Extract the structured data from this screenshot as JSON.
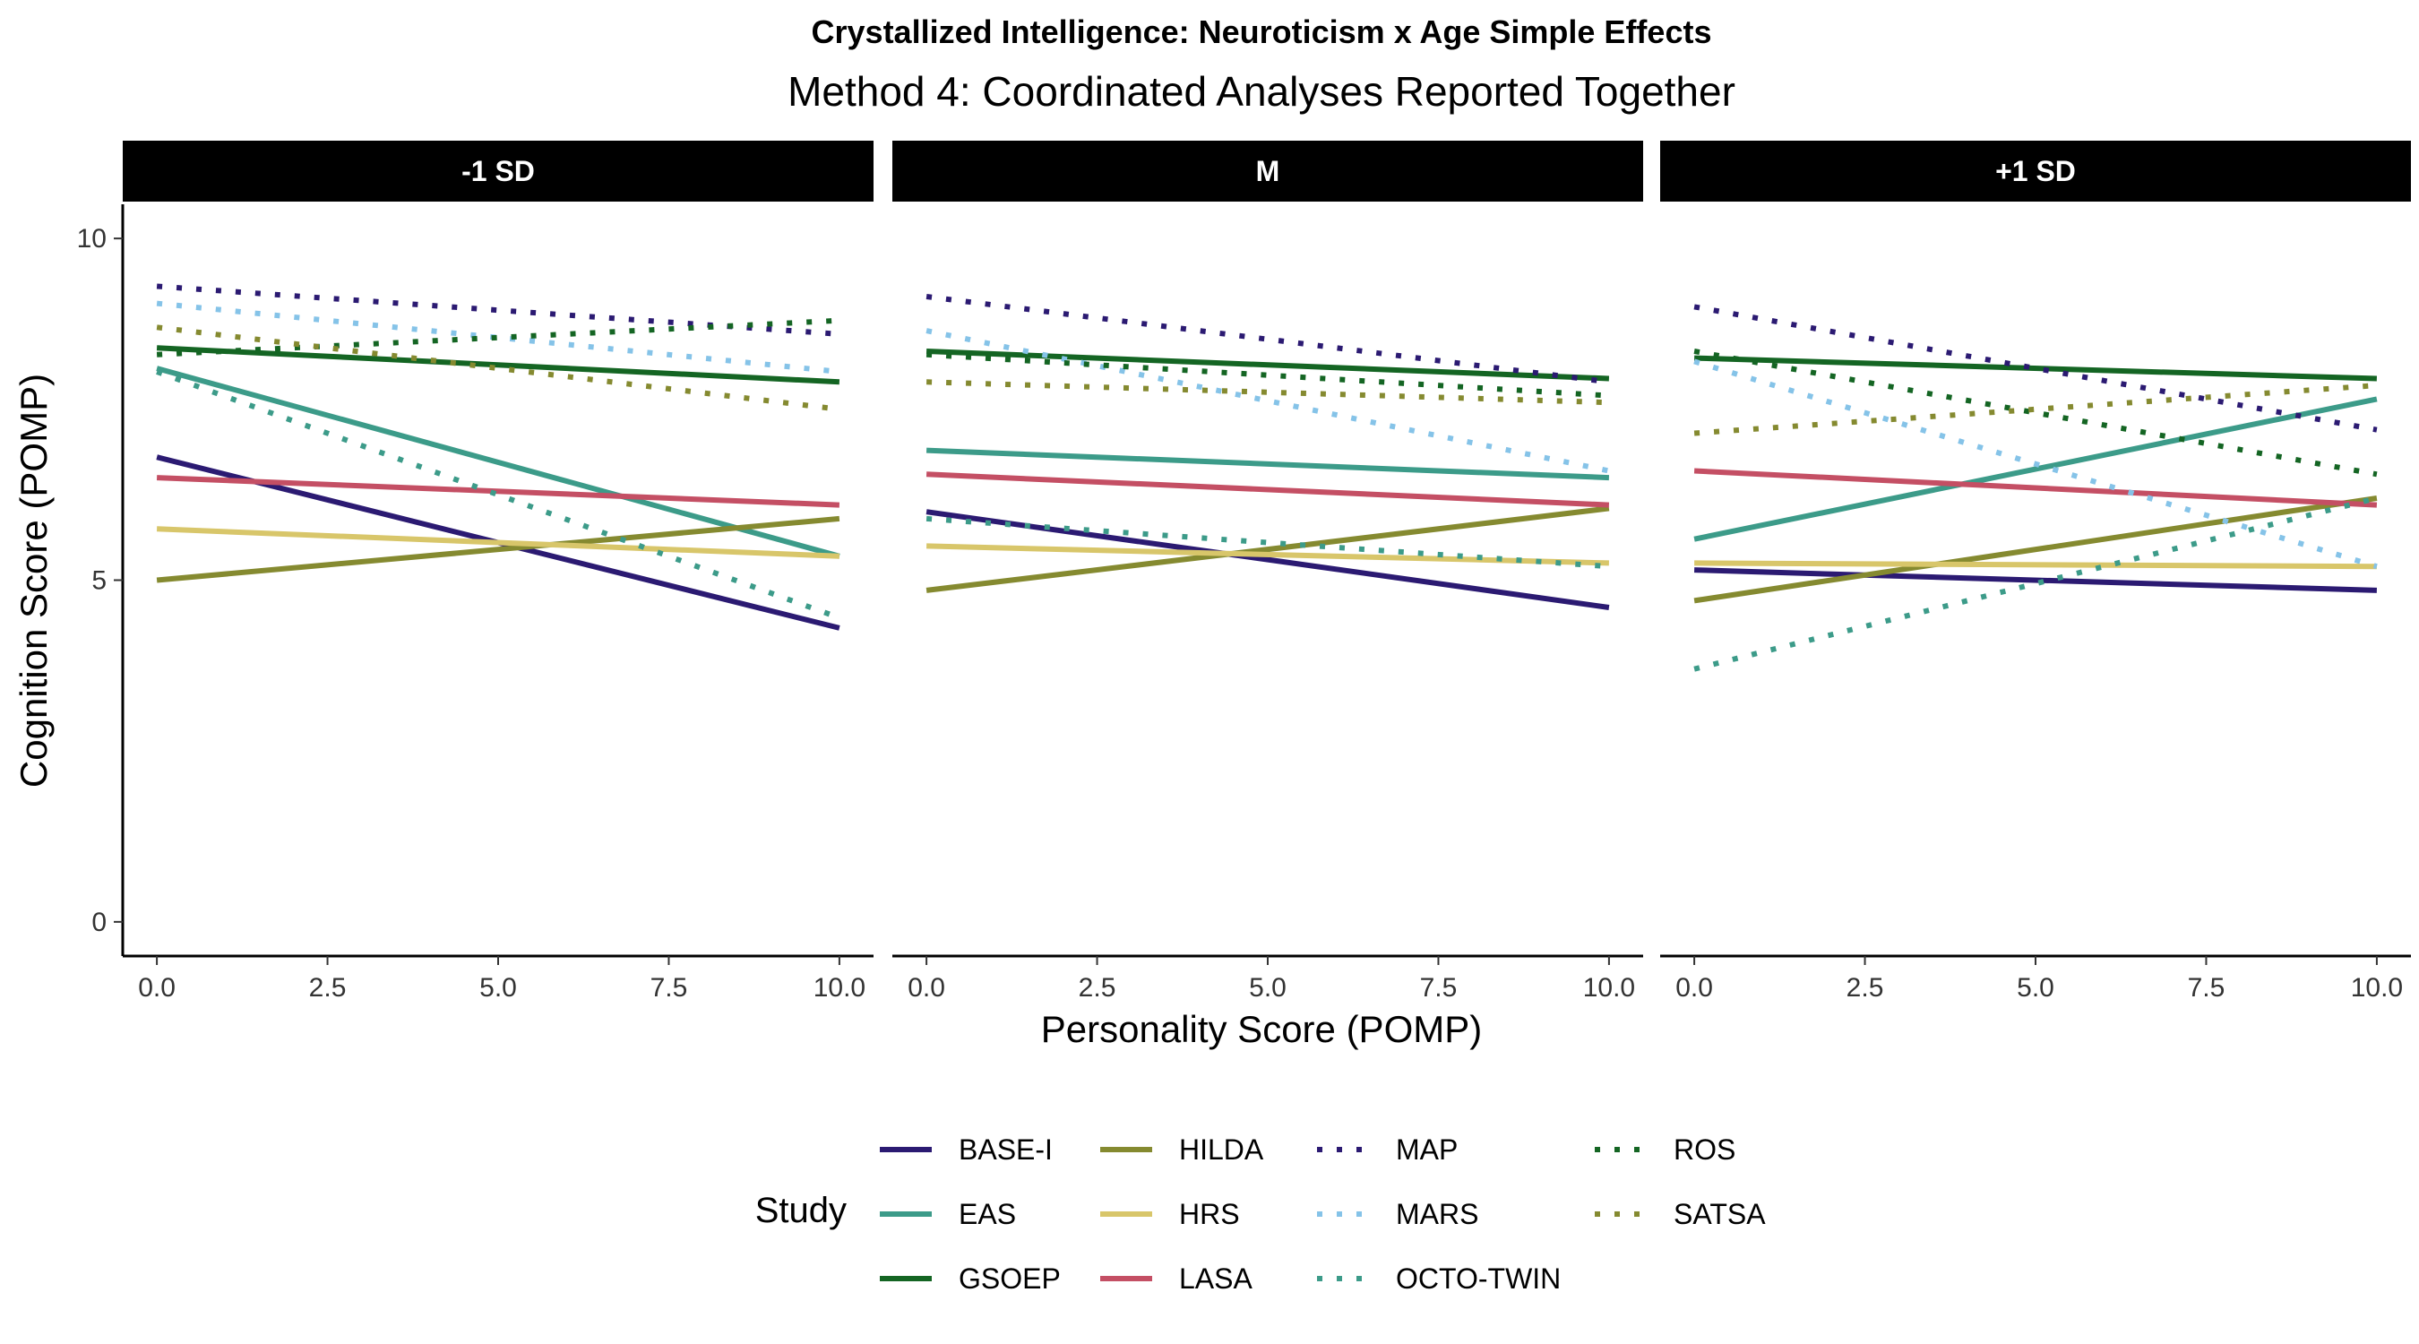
{
  "title": "Crystallized Intelligence: Neuroticism x Age Simple Effects",
  "subtitle": "Method 4: Coordinated Analyses Reported Together",
  "xlabel": "Personality Score (POMP)",
  "ylabel": "Cognition Score (POMP)",
  "legend_title": "Study",
  "chart_data": {
    "type": "line",
    "xlim": [
      -0.5,
      10.5
    ],
    "ylim": [
      -0.5,
      10.5
    ],
    "x_ticks": [
      0,
      2.5,
      5,
      7.5,
      10
    ],
    "x_tick_labels": [
      "0.0",
      "2.5",
      "5.0",
      "7.5",
      "10.0"
    ],
    "y_ticks": [
      0,
      5,
      10
    ],
    "y_tick_labels": [
      "0",
      "5",
      "10"
    ],
    "grid": false,
    "legend_position": "bottom",
    "panels": [
      {
        "label": "-1 SD",
        "series": [
          {
            "name": "BASE-I",
            "x": [
              0,
              10
            ],
            "y": [
              6.8,
              4.3
            ]
          },
          {
            "name": "EAS",
            "x": [
              0,
              10
            ],
            "y": [
              8.1,
              5.35
            ]
          },
          {
            "name": "GSOEP",
            "x": [
              0,
              10
            ],
            "y": [
              8.4,
              7.9
            ]
          },
          {
            "name": "HILDA",
            "x": [
              0,
              10
            ],
            "y": [
              5.0,
              5.9
            ]
          },
          {
            "name": "HRS",
            "x": [
              0,
              10
            ],
            "y": [
              5.75,
              5.35
            ]
          },
          {
            "name": "LASA",
            "x": [
              0,
              10
            ],
            "y": [
              6.5,
              6.1
            ]
          },
          {
            "name": "MAP",
            "x": [
              0,
              10
            ],
            "y": [
              9.3,
              8.6
            ]
          },
          {
            "name": "MARS",
            "x": [
              0,
              10
            ],
            "y": [
              9.05,
              8.05
            ]
          },
          {
            "name": "OCTO-TWIN",
            "x": [
              0,
              10
            ],
            "y": [
              8.05,
              4.45
            ]
          },
          {
            "name": "ROS",
            "x": [
              0,
              10
            ],
            "y": [
              8.3,
              8.8
            ]
          },
          {
            "name": "SATSA",
            "x": [
              0,
              10
            ],
            "y": [
              8.7,
              7.5
            ]
          }
        ]
      },
      {
        "label": "M",
        "series": [
          {
            "name": "BASE-I",
            "x": [
              0,
              10
            ],
            "y": [
              6.0,
              4.6
            ]
          },
          {
            "name": "EAS",
            "x": [
              0,
              10
            ],
            "y": [
              6.9,
              6.5
            ]
          },
          {
            "name": "GSOEP",
            "x": [
              0,
              10
            ],
            "y": [
              8.35,
              7.95
            ]
          },
          {
            "name": "HILDA",
            "x": [
              0,
              10
            ],
            "y": [
              4.85,
              6.05
            ]
          },
          {
            "name": "HRS",
            "x": [
              0,
              10
            ],
            "y": [
              5.5,
              5.25
            ]
          },
          {
            "name": "LASA",
            "x": [
              0,
              10
            ],
            "y": [
              6.55,
              6.1
            ]
          },
          {
            "name": "MAP",
            "x": [
              0,
              10
            ],
            "y": [
              9.15,
              7.9
            ]
          },
          {
            "name": "MARS",
            "x": [
              0,
              10
            ],
            "y": [
              8.65,
              6.6
            ]
          },
          {
            "name": "OCTO-TWIN",
            "x": [
              0,
              10
            ],
            "y": [
              5.9,
              5.2
            ]
          },
          {
            "name": "ROS",
            "x": [
              0,
              10
            ],
            "y": [
              8.3,
              7.7
            ]
          },
          {
            "name": "SATSA",
            "x": [
              0,
              10
            ],
            "y": [
              7.9,
              7.6
            ]
          }
        ]
      },
      {
        "label": "+1 SD",
        "series": [
          {
            "name": "BASE-I",
            "x": [
              0,
              10
            ],
            "y": [
              5.15,
              4.85
            ]
          },
          {
            "name": "EAS",
            "x": [
              0,
              10
            ],
            "y": [
              5.6,
              7.65
            ]
          },
          {
            "name": "GSOEP",
            "x": [
              0,
              10
            ],
            "y": [
              8.25,
              7.95
            ]
          },
          {
            "name": "HILDA",
            "x": [
              0,
              10
            ],
            "y": [
              4.7,
              6.2
            ]
          },
          {
            "name": "HRS",
            "x": [
              0,
              10
            ],
            "y": [
              5.25,
              5.2
            ]
          },
          {
            "name": "LASA",
            "x": [
              0,
              10
            ],
            "y": [
              6.6,
              6.1
            ]
          },
          {
            "name": "MAP",
            "x": [
              0,
              10
            ],
            "y": [
              9.0,
              7.2
            ]
          },
          {
            "name": "MARS",
            "x": [
              0,
              10
            ],
            "y": [
              8.2,
              5.2
            ]
          },
          {
            "name": "OCTO-TWIN",
            "x": [
              0,
              10
            ],
            "y": [
              3.7,
              6.2
            ]
          },
          {
            "name": "ROS",
            "x": [
              0,
              10
            ],
            "y": [
              8.35,
              6.55
            ]
          },
          {
            "name": "SATSA",
            "x": [
              0,
              10
            ],
            "y": [
              7.15,
              7.85
            ]
          }
        ]
      }
    ],
    "series_styles": [
      {
        "name": "BASE-I",
        "color": "#2b1a72",
        "dash": "solid"
      },
      {
        "name": "EAS",
        "color": "#3c9b89",
        "dash": "solid"
      },
      {
        "name": "GSOEP",
        "color": "#146523",
        "dash": "solid"
      },
      {
        "name": "HILDA",
        "color": "#858a30",
        "dash": "solid"
      },
      {
        "name": "HRS",
        "color": "#d8c66a",
        "dash": "solid"
      },
      {
        "name": "LASA",
        "color": "#c44f64",
        "dash": "solid"
      },
      {
        "name": "MAP",
        "color": "#2b1a72",
        "dash": "dotted"
      },
      {
        "name": "MARS",
        "color": "#85c3e8",
        "dash": "dotted"
      },
      {
        "name": "OCTO-TWIN",
        "color": "#3c9b89",
        "dash": "dotted"
      },
      {
        "name": "ROS",
        "color": "#146523",
        "dash": "dotted"
      },
      {
        "name": "SATSA",
        "color": "#858a30",
        "dash": "dotted"
      }
    ]
  }
}
